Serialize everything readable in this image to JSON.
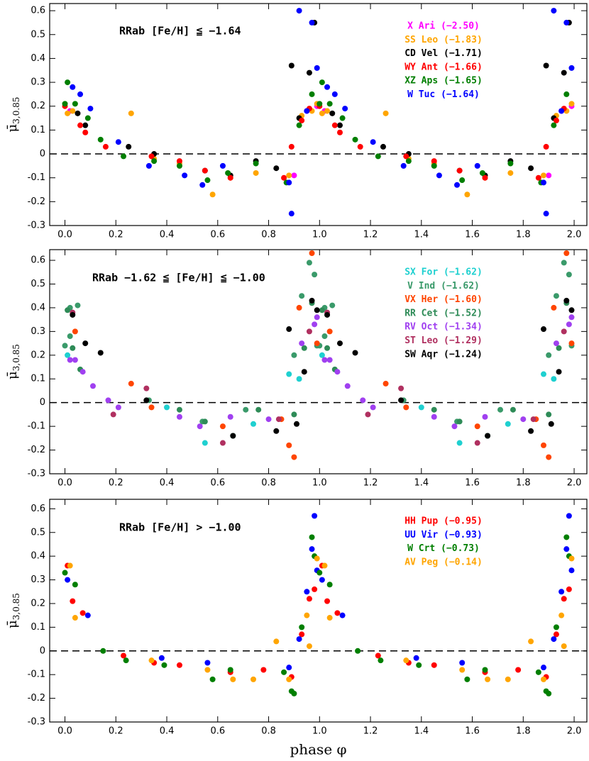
{
  "chart_data": [
    {
      "type": "scatter",
      "annotation": "RRab [Fe/H] ≦ −1.64",
      "ylabel": "μ̄",
      "ylabel_sub": "3,0.85",
      "xlim": [
        -0.06,
        2.05
      ],
      "ylim": [
        -0.3,
        0.63
      ],
      "reference_line": 0,
      "xticks": [
        {
          "value": 0,
          "label": "0.0"
        },
        {
          "value": 0.2,
          "label": "0.2"
        },
        {
          "value": 0.4,
          "label": "0.4"
        },
        {
          "value": 0.6,
          "label": "0.6"
        },
        {
          "value": 0.8,
          "label": "0.8"
        },
        {
          "value": 1,
          "label": "1.0"
        },
        {
          "value": 1.2,
          "label": "1.2"
        },
        {
          "value": 1.4,
          "label": "1.4"
        },
        {
          "value": 1.6,
          "label": "1.6"
        },
        {
          "value": 1.8,
          "label": "1.8"
        },
        {
          "value": 2,
          "label": "2.0"
        }
      ],
      "yticks": [
        -0.3,
        -0.2,
        -0.1,
        0,
        0.1,
        0.2,
        0.3,
        0.4,
        0.5,
        0.6
      ],
      "series": [
        {
          "name": "X Ari (−2.50)",
          "color": "#ff00ff",
          "x": [
            0.02,
            0.9,
            0.95,
            0.99,
            1.02,
            1.9,
            1.95,
            1.99
          ],
          "values": [
            0.18,
            -0.09,
            0.18,
            0.2,
            0.18,
            -0.09,
            0.18,
            0.2
          ]
        },
        {
          "name": "SS Leo (−1.83)",
          "color": "#ffa500",
          "x": [
            0.01,
            0.03,
            0.26,
            0.35,
            0.45,
            0.58,
            0.65,
            0.75,
            0.88,
            0.93,
            0.97,
            0.99,
            1.01,
            1.03,
            1.26,
            1.35,
            1.45,
            1.58,
            1.65,
            1.75,
            1.88,
            1.93,
            1.97,
            1.99
          ],
          "values": [
            0.17,
            0.18,
            0.17,
            -0.02,
            -0.04,
            -0.17,
            -0.1,
            -0.08,
            -0.09,
            0.16,
            0.18,
            0.21,
            0.17,
            0.18,
            0.17,
            -0.02,
            -0.04,
            -0.17,
            -0.1,
            -0.08,
            -0.09,
            0.16,
            0.18,
            0.21
          ]
        },
        {
          "name": "CD Vel (−1.71)",
          "color": "#000000",
          "x": [
            0.05,
            0.08,
            0.25,
            0.35,
            0.55,
            0.65,
            0.75,
            0.83,
            0.89,
            0.92,
            0.96,
            0.98,
            1.05,
            1.08,
            1.25,
            1.35,
            1.55,
            1.65,
            1.75,
            1.83,
            1.89,
            1.92,
            1.96,
            1.98
          ],
          "values": [
            0.17,
            0.12,
            0.03,
            0,
            -0.07,
            -0.09,
            -0.03,
            -0.06,
            0.37,
            0.15,
            0.34,
            0.55,
            0.17,
            0.12,
            0.03,
            0,
            -0.07,
            -0.09,
            -0.03,
            -0.06,
            0.37,
            0.15,
            0.34,
            0.55
          ]
        },
        {
          "name": "WY Ant (−1.66)",
          "color": "#ff0000",
          "x": [
            0,
            0.06,
            0.08,
            0.16,
            0.34,
            0.45,
            0.55,
            0.65,
            0.86,
            0.89,
            0.93,
            0.96,
            1,
            1.06,
            1.08,
            1.16,
            1.34,
            1.45,
            1.55,
            1.65,
            1.86,
            1.89,
            1.93,
            1.96
          ],
          "values": [
            0.2,
            0.12,
            0.09,
            0.03,
            -0.01,
            -0.03,
            -0.07,
            -0.1,
            -0.1,
            0.03,
            0.14,
            0.19,
            0.2,
            0.12,
            0.09,
            0.03,
            -0.01,
            -0.03,
            -0.07,
            -0.1,
            -0.1,
            0.03,
            0.14,
            0.19
          ]
        },
        {
          "name": "XZ Aps (−1.65)",
          "color": "#007f00",
          "x": [
            0.01,
            0,
            0.04,
            0.09,
            0.14,
            0.23,
            0.35,
            0.45,
            0.56,
            0.64,
            0.75,
            0.87,
            0.92,
            0.97,
            1.01,
            1,
            1.04,
            1.09,
            1.14,
            1.23,
            1.35,
            1.45,
            1.56,
            1.64,
            1.75,
            1.87,
            1.92,
            1.97
          ],
          "values": [
            0.3,
            0.21,
            0.21,
            0.15,
            0.06,
            -0.01,
            -0.03,
            -0.05,
            -0.11,
            -0.08,
            -0.04,
            -0.12,
            0.12,
            0.25,
            0.3,
            0.21,
            0.21,
            0.15,
            0.06,
            -0.01,
            -0.03,
            -0.05,
            -0.11,
            -0.08,
            -0.04,
            -0.12,
            0.12,
            0.25
          ]
        },
        {
          "name": "W Tuc (−1.64)",
          "color": "#0000ff",
          "x": [
            0.03,
            0.06,
            0.1,
            0.21,
            0.33,
            0.47,
            0.54,
            0.62,
            0.88,
            0.89,
            0.92,
            0.97,
            0.99,
            0.95,
            1.03,
            1.06,
            1.1,
            1.21,
            1.33,
            1.47,
            1.54,
            1.62,
            1.88,
            1.89,
            1.92,
            1.97,
            1.99,
            1.95
          ],
          "values": [
            0.28,
            0.25,
            0.19,
            0.05,
            -0.05,
            -0.09,
            -0.13,
            -0.05,
            -0.12,
            -0.25,
            0.6,
            0.55,
            0.36,
            0.18,
            0.28,
            0.25,
            0.19,
            0.05,
            -0.05,
            -0.09,
            -0.13,
            -0.05,
            -0.12,
            -0.25,
            0.6,
            0.55,
            0.36,
            0.18
          ]
        }
      ]
    },
    {
      "type": "scatter",
      "annotation": "RRab −1.62 ≦ [Fe/H] ≦ −1.00",
      "ylabel": "μ̄",
      "ylabel_sub": "3,0.85",
      "xlim": [
        -0.06,
        2.05
      ],
      "ylim": [
        -0.3,
        0.645
      ],
      "reference_line": 0,
      "xticks": [
        {
          "value": 0,
          "label": "0.0"
        },
        {
          "value": 0.2,
          "label": "0.2"
        },
        {
          "value": 0.4,
          "label": "0.4"
        },
        {
          "value": 0.6,
          "label": "0.6"
        },
        {
          "value": 0.8,
          "label": "0.8"
        },
        {
          "value": 1,
          "label": "1.0"
        },
        {
          "value": 1.2,
          "label": "1.2"
        },
        {
          "value": 1.4,
          "label": "1.4"
        },
        {
          "value": 1.6,
          "label": "1.6"
        },
        {
          "value": 1.8,
          "label": "1.8"
        },
        {
          "value": 2,
          "label": "2.0"
        }
      ],
      "yticks": [
        -0.3,
        -0.2,
        -0.1,
        0,
        0.1,
        0.2,
        0.3,
        0.4,
        0.5,
        0.6
      ],
      "series": [
        {
          "name": "SX For (−1.62)",
          "color": "#1fd0d0",
          "x": [
            0.01,
            0.4,
            0.55,
            0.74,
            0.88,
            0.92,
            1.01,
            1.4,
            1.55,
            1.74,
            1.88,
            1.92
          ],
          "values": [
            0.2,
            -0.02,
            -0.17,
            -0.09,
            0.12,
            0.1,
            0.2,
            -0.02,
            -0.17,
            -0.09,
            0.12,
            0.1
          ]
        },
        {
          "name": "V Ind (−1.62)",
          "color": "#3a9a6a",
          "x": [
            0,
            0.02,
            0.05,
            0.02,
            0.33,
            0.54,
            0.66,
            0.71,
            0.9,
            0.93,
            0.96,
            0.98,
            0.99,
            1,
            1.02,
            1.05,
            1.02,
            1.33,
            1.54,
            1.66,
            1.71,
            1.9,
            1.93,
            1.96,
            1.98,
            1.99
          ],
          "values": [
            0.24,
            0.4,
            0.41,
            0.28,
            0.01,
            -0.08,
            -0.14,
            -0.03,
            0.2,
            0.45,
            0.59,
            0.54,
            0.24,
            0.24,
            0.4,
            0.41,
            0.28,
            0.01,
            -0.08,
            -0.14,
            -0.03,
            0.2,
            0.45,
            0.59,
            0.54,
            0.24
          ]
        },
        {
          "name": "VX Her (−1.60)",
          "color": "#ff4500",
          "x": [
            0.04,
            0.26,
            0.34,
            0.62,
            0.85,
            0.88,
            0.9,
            0.92,
            0.97,
            0.99,
            1.04,
            1.26,
            1.34,
            1.62,
            1.85,
            1.88,
            1.9,
            1.92,
            1.97,
            1.99
          ],
          "values": [
            0.3,
            0.08,
            -0.02,
            -0.1,
            -0.07,
            -0.18,
            -0.23,
            0.4,
            0.63,
            0.25,
            0.3,
            0.08,
            -0.02,
            -0.1,
            -0.07,
            -0.18,
            -0.23,
            0.4,
            0.63,
            0.25
          ]
        },
        {
          "name": "RR Cet (−1.52)",
          "color": "#2e8b57",
          "x": [
            0.01,
            0.03,
            0.06,
            0.45,
            0.55,
            0.76,
            0.9,
            0.94,
            0.97,
            1.01,
            1.03,
            1.06,
            1.45,
            1.55,
            1.76,
            1.9,
            1.94,
            1.97
          ],
          "values": [
            0.39,
            0.23,
            0.14,
            -0.03,
            -0.08,
            -0.03,
            -0.05,
            0.23,
            0.42,
            0.39,
            0.23,
            0.14,
            -0.03,
            -0.08,
            -0.03,
            -0.05,
            0.23,
            0.42
          ]
        },
        {
          "name": "RV Oct (−1.34)",
          "color": "#a040f0",
          "x": [
            0.02,
            0.04,
            0.07,
            0.11,
            0.17,
            0.21,
            0.45,
            0.53,
            0.65,
            0.8,
            0.93,
            0.98,
            0.99,
            1.02,
            1.04,
            1.07,
            1.11,
            1.17,
            1.21,
            1.45,
            1.53,
            1.65,
            1.8,
            1.93,
            1.98,
            1.99
          ],
          "values": [
            0.18,
            0.18,
            0.13,
            0.07,
            0.01,
            -0.02,
            -0.06,
            -0.1,
            -0.06,
            -0.07,
            0.25,
            0.33,
            0.36,
            0.18,
            0.18,
            0.13,
            0.07,
            0.01,
            -0.02,
            -0.06,
            -0.1,
            -0.06,
            -0.07,
            0.25,
            0.33,
            0.36
          ]
        },
        {
          "name": "ST Leo (−1.29)",
          "color": "#b03060",
          "x": [
            0.03,
            0.19,
            0.32,
            0.62,
            0.84,
            0.96,
            1.03,
            1.19,
            1.32,
            1.62,
            1.84,
            1.96
          ],
          "values": [
            0.38,
            -0.05,
            0.06,
            -0.17,
            -0.07,
            0.3,
            0.38,
            -0.05,
            0.06,
            -0.17,
            -0.07,
            0.3
          ]
        },
        {
          "name": "SW Aqr (−1.24)",
          "color": "#000000",
          "x": [
            0.03,
            0.08,
            0.14,
            0.32,
            0.66,
            0.83,
            0.88,
            0.91,
            0.94,
            0.97,
            0.99,
            1.03,
            1.08,
            1.14,
            1.32,
            1.66,
            1.83,
            1.88,
            1.91,
            1.94,
            1.97,
            1.99
          ],
          "values": [
            0.37,
            0.25,
            0.21,
            0.01,
            -0.14,
            -0.12,
            0.31,
            -0.09,
            0.13,
            0.43,
            0.39,
            0.37,
            0.25,
            0.21,
            0.01,
            -0.14,
            -0.12,
            0.31,
            -0.09,
            0.13,
            0.43,
            0.39
          ]
        }
      ]
    },
    {
      "type": "scatter",
      "annotation": "RRab [Fe/H] > −1.00",
      "ylabel": "μ̄",
      "ylabel_sub": "3,0.85",
      "xlabel": "phase φ",
      "xlim": [
        -0.06,
        2.05
      ],
      "ylim": [
        -0.3,
        0.64
      ],
      "reference_line": 0,
      "xticks": [
        {
          "value": 0,
          "label": "0.0"
        },
        {
          "value": 0.2,
          "label": "0.2"
        },
        {
          "value": 0.4,
          "label": "0.4"
        },
        {
          "value": 0.6,
          "label": "0.6"
        },
        {
          "value": 0.8,
          "label": "0.8"
        },
        {
          "value": 1,
          "label": "1.0"
        },
        {
          "value": 1.2,
          "label": "1.2"
        },
        {
          "value": 1.4,
          "label": "1.4"
        },
        {
          "value": 1.6,
          "label": "1.6"
        },
        {
          "value": 1.8,
          "label": "1.8"
        },
        {
          "value": 2,
          "label": "2.0"
        }
      ],
      "yticks": [
        -0.3,
        -0.2,
        -0.1,
        0,
        0.1,
        0.2,
        0.3,
        0.4,
        0.5,
        0.6
      ],
      "series": [
        {
          "name": "HH Pup (−0.95)",
          "color": "#ff0000",
          "x": [
            0.01,
            0.03,
            0.07,
            0.23,
            0.35,
            0.45,
            0.65,
            0.78,
            0.89,
            0.93,
            0.96,
            0.98,
            1.01,
            1.03,
            1.07,
            1.23,
            1.35,
            1.45,
            1.65,
            1.78,
            1.89,
            1.93,
            1.96,
            1.98
          ],
          "values": [
            0.36,
            0.21,
            0.16,
            -0.02,
            -0.05,
            -0.06,
            -0.09,
            -0.08,
            -0.11,
            0.07,
            0.22,
            0.26,
            0.36,
            0.21,
            0.16,
            -0.02,
            -0.05,
            -0.06,
            -0.09,
            -0.08,
            -0.11,
            0.07,
            0.22,
            0.26
          ]
        },
        {
          "name": "UU Vir (−0.93)",
          "color": "#0000ff",
          "x": [
            0.01,
            0.09,
            0.38,
            0.56,
            0.88,
            0.92,
            0.95,
            0.97,
            0.98,
            0.99,
            1.01,
            1.09,
            1.38,
            1.56,
            1.88,
            1.92,
            1.95,
            1.97,
            1.98,
            1.99
          ],
          "values": [
            0.3,
            0.15,
            -0.03,
            -0.05,
            -0.07,
            0.05,
            0.25,
            0.43,
            0.57,
            0.34,
            0.3,
            0.15,
            -0.03,
            -0.05,
            -0.07,
            0.05,
            0.25,
            0.43,
            0.57,
            0.34
          ]
        },
        {
          "name": "W Crt (−0.73)",
          "color": "#007f00",
          "x": [
            0,
            0.04,
            0.15,
            0.24,
            0.39,
            0.58,
            0.65,
            0.86,
            0.89,
            0.9,
            0.93,
            0.97,
            0.98,
            1,
            1.04,
            1.15,
            1.24,
            1.39,
            1.58,
            1.65,
            1.86,
            1.89,
            1.9,
            1.93,
            1.97,
            1.98
          ],
          "values": [
            0.33,
            0.28,
            0,
            -0.04,
            -0.06,
            -0.12,
            -0.08,
            -0.09,
            -0.17,
            -0.18,
            0.1,
            0.48,
            0.4,
            0.33,
            0.28,
            0,
            -0.04,
            -0.06,
            -0.12,
            -0.08,
            -0.09,
            -0.17,
            -0.18,
            0.1,
            0.48,
            0.4
          ]
        },
        {
          "name": "AV Peg (−0.14)",
          "color": "#ffa500",
          "x": [
            0.02,
            0.04,
            0.34,
            0.56,
            0.66,
            0.74,
            0.83,
            0.88,
            0.95,
            0.96,
            0.99,
            1.02,
            1.04,
            1.34,
            1.56,
            1.66,
            1.74,
            1.83,
            1.88,
            1.95,
            1.96,
            1.99
          ],
          "values": [
            0.36,
            0.14,
            -0.04,
            -0.08,
            -0.12,
            -0.12,
            0.04,
            -0.12,
            0.15,
            0.02,
            0.39,
            0.36,
            0.14,
            -0.04,
            -0.08,
            -0.12,
            -0.12,
            0.04,
            -0.12,
            0.15,
            0.02,
            0.39
          ]
        }
      ]
    }
  ]
}
